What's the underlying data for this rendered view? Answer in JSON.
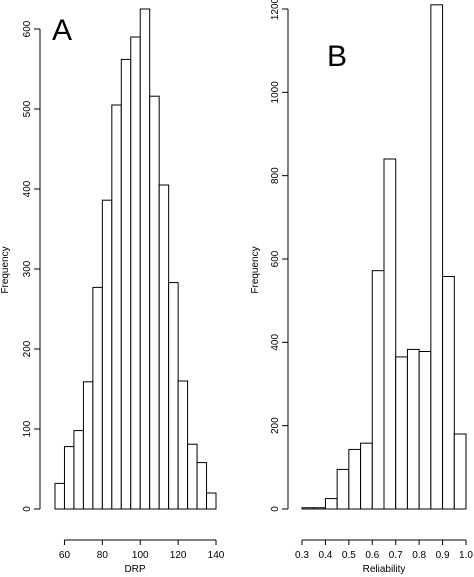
{
  "chart_data": [
    {
      "type": "bar",
      "panel_label": "A",
      "title": "",
      "xlabel": "DRP",
      "ylabel": "Frequency",
      "xlim": [
        55,
        140
      ],
      "ylim": [
        0,
        625
      ],
      "xticks": [
        60,
        80,
        100,
        120,
        140
      ],
      "yticks": [
        0,
        100,
        200,
        300,
        400,
        500,
        600
      ],
      "bins": [
        {
          "x0": 55,
          "x1": 60,
          "value": 32
        },
        {
          "x0": 60,
          "x1": 65,
          "value": 78
        },
        {
          "x0": 65,
          "x1": 70,
          "value": 98
        },
        {
          "x0": 70,
          "x1": 75,
          "value": 159
        },
        {
          "x0": 75,
          "x1": 80,
          "value": 277
        },
        {
          "x0": 80,
          "x1": 85,
          "value": 386
        },
        {
          "x0": 85,
          "x1": 90,
          "value": 505
        },
        {
          "x0": 90,
          "x1": 95,
          "value": 562
        },
        {
          "x0": 95,
          "x1": 100,
          "value": 590
        },
        {
          "x0": 100,
          "x1": 105,
          "value": 625
        },
        {
          "x0": 105,
          "x1": 110,
          "value": 516
        },
        {
          "x0": 110,
          "x1": 115,
          "value": 405
        },
        {
          "x0": 115,
          "x1": 120,
          "value": 283
        },
        {
          "x0": 120,
          "x1": 125,
          "value": 160
        },
        {
          "x0": 125,
          "x1": 130,
          "value": 81
        },
        {
          "x0": 130,
          "x1": 135,
          "value": 58
        },
        {
          "x0": 135,
          "x1": 140,
          "value": 20
        }
      ]
    },
    {
      "type": "bar",
      "panel_label": "B",
      "title": "",
      "xlabel": "Reliability",
      "ylabel": "Frequency",
      "xlim": [
        0.3,
        1.0
      ],
      "ylim": [
        0,
        1200
      ],
      "xticks": [
        0.3,
        0.4,
        0.5,
        0.6,
        0.7,
        0.8,
        0.9,
        1.0
      ],
      "xtick_labels": [
        "0.3",
        "0.4",
        "0.5",
        "0.6",
        "0.7",
        "0.8",
        "0.9",
        "1.0"
      ],
      "yticks": [
        0,
        200,
        400,
        600,
        800,
        1000,
        1200
      ],
      "bins": [
        {
          "x0": 0.3,
          "x1": 0.35,
          "value": 3
        },
        {
          "x0": 0.35,
          "x1": 0.4,
          "value": 3
        },
        {
          "x0": 0.4,
          "x1": 0.45,
          "value": 25
        },
        {
          "x0": 0.45,
          "x1": 0.5,
          "value": 95
        },
        {
          "x0": 0.5,
          "x1": 0.55,
          "value": 143
        },
        {
          "x0": 0.55,
          "x1": 0.6,
          "value": 158
        },
        {
          "x0": 0.6,
          "x1": 0.65,
          "value": 572
        },
        {
          "x0": 0.65,
          "x1": 0.7,
          "value": 840
        },
        {
          "x0": 0.7,
          "x1": 0.75,
          "value": 365
        },
        {
          "x0": 0.75,
          "x1": 0.8,
          "value": 383
        },
        {
          "x0": 0.8,
          "x1": 0.85,
          "value": 378
        },
        {
          "x0": 0.85,
          "x1": 0.9,
          "value": 1210
        },
        {
          "x0": 0.9,
          "x1": 0.95,
          "value": 558
        },
        {
          "x0": 0.95,
          "x1": 1.0,
          "value": 180
        }
      ]
    }
  ]
}
